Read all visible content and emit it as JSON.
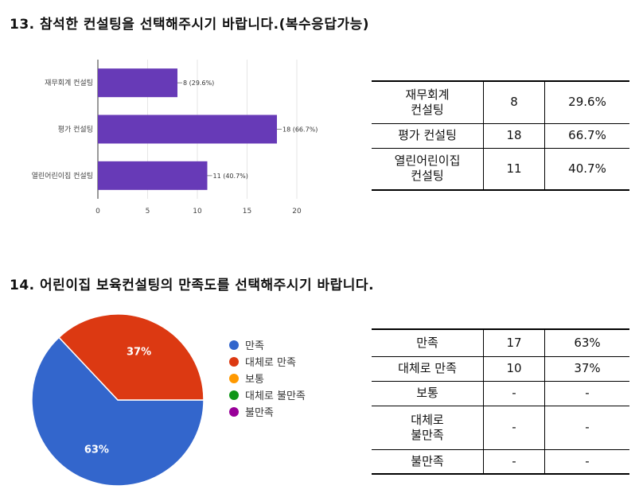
{
  "q13": {
    "title": "13. 참석한 컨설팅을 선택해주시기 바랍니다.(복수응답가능)",
    "chart_data": {
      "type": "bar",
      "orientation": "horizontal",
      "categories": [
        "재무회계 컨설팅",
        "평가 컨설팅",
        "열린어린이집 컨설팅"
      ],
      "values": [
        8,
        18,
        11
      ],
      "data_labels": [
        "8 (29.6%)",
        "18 (66.7%)",
        "11 (40.7%)"
      ],
      "xlim": [
        0,
        20
      ],
      "xticks": [
        0,
        5,
        10,
        15,
        20
      ],
      "bar_color": "#673ab7",
      "grid": true
    },
    "table": [
      {
        "label": "재무회계\n컨설팅",
        "count": "8",
        "pct": "29.6%"
      },
      {
        "label": "평가 컨설팅",
        "count": "18",
        "pct": "66.7%"
      },
      {
        "label": "열린어린이집\n컨설팅",
        "count": "11",
        "pct": "40.7%"
      }
    ]
  },
  "q14": {
    "title": "14. 어린이집 보육컨설팅의 만족도를 선택해주시기 바랍니다.",
    "chart_data": {
      "type": "pie",
      "slices": [
        {
          "label": "만족",
          "value": 63,
          "display": "63%",
          "color": "#3366cc"
        },
        {
          "label": "대체로 만족",
          "value": 37,
          "display": "37%",
          "color": "#dc3912"
        },
        {
          "label": "보통",
          "value": 0,
          "color": "#ff9900"
        },
        {
          "label": "대체로 불만족",
          "value": 0,
          "color": "#109618"
        },
        {
          "label": "불만족",
          "value": 0,
          "color": "#990099"
        }
      ],
      "legend_position": "right"
    },
    "table": [
      {
        "label": "만족",
        "count": "17",
        "pct": "63%"
      },
      {
        "label": "대체로 만족",
        "count": "10",
        "pct": "37%"
      },
      {
        "label": "보통",
        "count": "-",
        "pct": "-"
      },
      {
        "label": "대체로\n불만족",
        "count": "-",
        "pct": "-"
      },
      {
        "label": "불만족",
        "count": "-",
        "pct": "-"
      }
    ]
  }
}
